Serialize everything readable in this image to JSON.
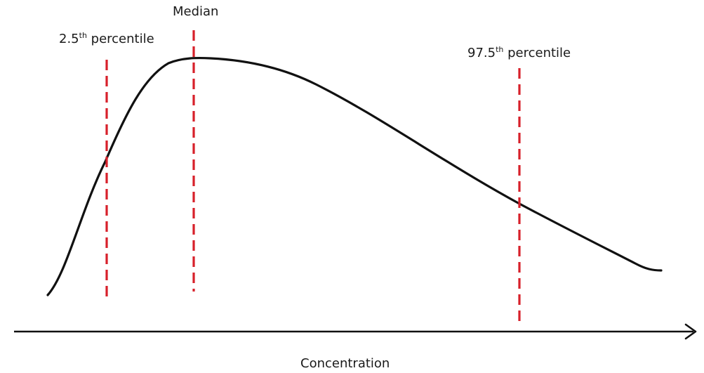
{
  "labels": {
    "median": "Median",
    "p025_number": "2.5",
    "p025_sup": "th",
    "p025_word": " percentile",
    "p975_number": "97.5",
    "p975_sup": "th",
    "p975_word": " percentile",
    "x_axis": "Concentration"
  },
  "colors": {
    "curve": "#111111",
    "axis": "#111111",
    "percentile_markers": "#d7202a"
  }
}
